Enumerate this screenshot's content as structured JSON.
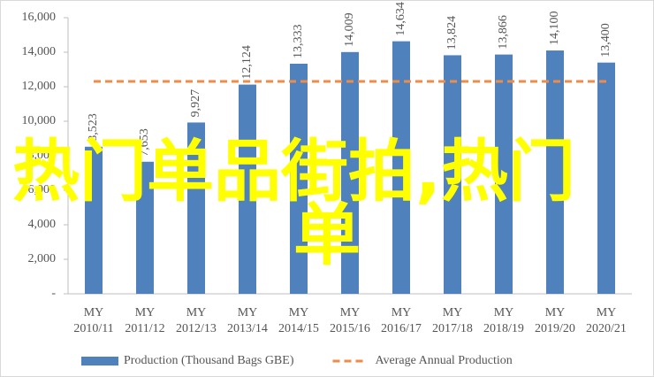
{
  "chart_data": {
    "type": "bar",
    "categories": [
      "MY 2010/11",
      "MY 2011/12",
      "MY 2012/13",
      "MY 2013/14",
      "MY 2014/15",
      "MY 2015/16",
      "MY 2016/17",
      "MY 2017/18",
      "MY 2018/19",
      "MY 2019/20",
      "MY 2020/21"
    ],
    "series": [
      {
        "name": "Production (Thousand Bags GBE)",
        "color": "#4f81bd",
        "values": [
          8523,
          7653,
          9927,
          12124,
          13333,
          14009,
          14634,
          13824,
          13866,
          14100,
          13400
        ],
        "value_labels": [
          "8,523",
          "7,653",
          "9,927",
          "12,124",
          "13,333",
          "14,009",
          "14,634",
          "13,824",
          "13,866",
          "14,100",
          "13,400"
        ]
      },
      {
        "name": "Average Annual Production",
        "color": "#ee8c4a",
        "type": "line",
        "dashed": true,
        "values": [
          12308,
          12308,
          12308,
          12308,
          12308,
          12308,
          12308,
          12308,
          12308,
          12308,
          12308
        ]
      }
    ],
    "ylim": [
      0,
      16000
    ],
    "yticks": [
      {
        "value": 0,
        "label": "-"
      },
      {
        "value": 2000,
        "label": "2,000"
      },
      {
        "value": 4000,
        "label": "4,000"
      },
      {
        "value": 6000,
        "label": "6,000"
      },
      {
        "value": 8000,
        "label": "8,000"
      },
      {
        "value": 10000,
        "label": "10,000"
      },
      {
        "value": 12000,
        "label": "12,000"
      },
      {
        "value": 14000,
        "label": "14,000"
      },
      {
        "value": 16000,
        "label": "16,000"
      }
    ],
    "grid": false,
    "legend": "bottom",
    "annotations": [
      "热门单品街拍,热门",
      "单"
    ]
  }
}
